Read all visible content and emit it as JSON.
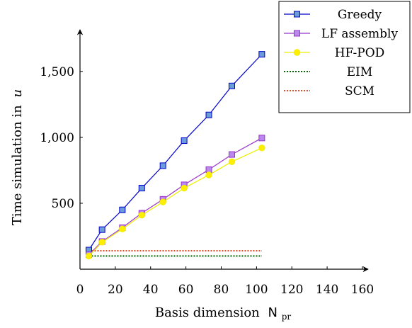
{
  "chart_data": {
    "type": "line",
    "xlabel": "Basis dimension",
    "xlabel_symbol": "N",
    "xlabel_subscript": "pr",
    "ylabel": "Time simulation in",
    "ylabel_symbol": "u",
    "xlim": [
      0,
      160
    ],
    "ylim": [
      0,
      1800
    ],
    "x_ticks": [
      0,
      20,
      40,
      60,
      80,
      100,
      120,
      140,
      160
    ],
    "x_tick_labels": [
      "0",
      "20",
      "40",
      "60",
      "80",
      "100",
      "120",
      "140",
      "160"
    ],
    "y_ticks": [
      500,
      1000,
      1500
    ],
    "y_tick_labels": [
      "500",
      "1,000",
      "1,500"
    ],
    "grid": false,
    "legend_position": "top-right",
    "series": [
      {
        "name": "Greedy",
        "color": "#0000cc",
        "marker": "square",
        "marker_fill": "#6b9bd8",
        "x": [
          5,
          12.5,
          24,
          35,
          47,
          59,
          73,
          86,
          103
        ],
        "values": [
          145,
          300,
          450,
          615,
          785,
          975,
          1170,
          1390,
          1630
        ]
      },
      {
        "name": "LF assembly",
        "color": "#9933cc",
        "marker": "square",
        "marker_fill": "#bb88ee",
        "x": [
          5,
          12.5,
          24,
          35,
          47,
          59,
          73,
          86,
          103
        ],
        "values": [
          110,
          210,
          315,
          425,
          530,
          640,
          755,
          870,
          995
        ]
      },
      {
        "name": "HF-POD",
        "color": "#eeee00",
        "marker": "circle",
        "marker_fill": "#ffee00",
        "x": [
          5,
          12.5,
          24,
          35,
          47,
          59,
          73,
          86,
          103
        ],
        "values": [
          100,
          205,
          305,
          410,
          510,
          615,
          715,
          815,
          920
        ]
      },
      {
        "name": "EIM",
        "color": "#006600",
        "marker": "none",
        "dash": "dotted",
        "x": [
          5,
          103
        ],
        "values": [
          100,
          100
        ]
      },
      {
        "name": "SCM",
        "color": "#e05030",
        "marker": "none",
        "dash": "dotted",
        "x": [
          5,
          103
        ],
        "values": [
          140,
          140
        ]
      }
    ]
  }
}
